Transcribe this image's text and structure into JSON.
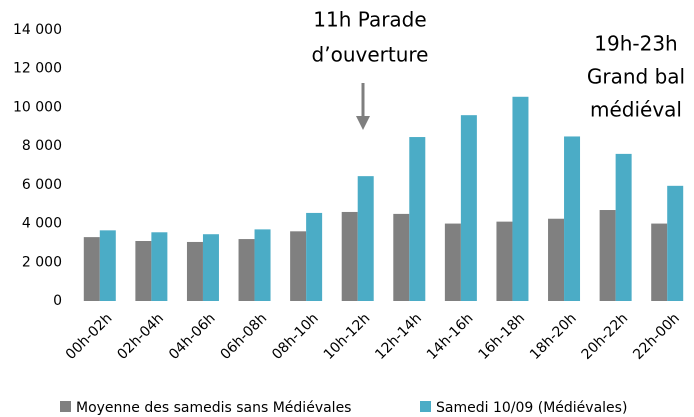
{
  "chart_data": {
    "type": "bar",
    "categories": [
      "00h-02h",
      "02h-04h",
      "04h-06h",
      "06h-08h",
      "08h-10h",
      "10h-12h",
      "12h-14h",
      "14h-16h",
      "16h-18h",
      "18h-20h",
      "20h-22h",
      "22h-00h"
    ],
    "series": [
      {
        "name": "Moyenne des samedis sans Médiévales",
        "color": "#808080",
        "values": [
          3300,
          3100,
          3050,
          3200,
          3600,
          4600,
          4500,
          4000,
          4100,
          4250,
          4700,
          4000
        ]
      },
      {
        "name": "Samedi 10/09 (Médiévales)",
        "color": "#4bacc6",
        "values": [
          3650,
          3550,
          3450,
          3700,
          4550,
          6450,
          8470,
          9600,
          10550,
          8500,
          7600,
          5950
        ]
      }
    ],
    "ylim": [
      0,
      14000
    ],
    "yticks": [
      0,
      {
        "value": 2000,
        "label": "2 000"
      },
      {
        "value": 4000,
        "label": "4 000"
      },
      {
        "value": 6000,
        "label": "6 000"
      },
      {
        "value": 8000,
        "label": "8 000"
      },
      {
        "value": 10000,
        "label": "10 000"
      },
      {
        "value": 12000,
        "label": "12 000"
      },
      {
        "value": 14000,
        "label": "14 000"
      }
    ],
    "annotations": [
      {
        "lines": [
          "11h Parade",
          "d’ouverture"
        ]
      },
      {
        "lines": [
          "19h-23h",
          "Grand bal",
          "médiéval"
        ]
      }
    ],
    "legend": "bottom"
  }
}
